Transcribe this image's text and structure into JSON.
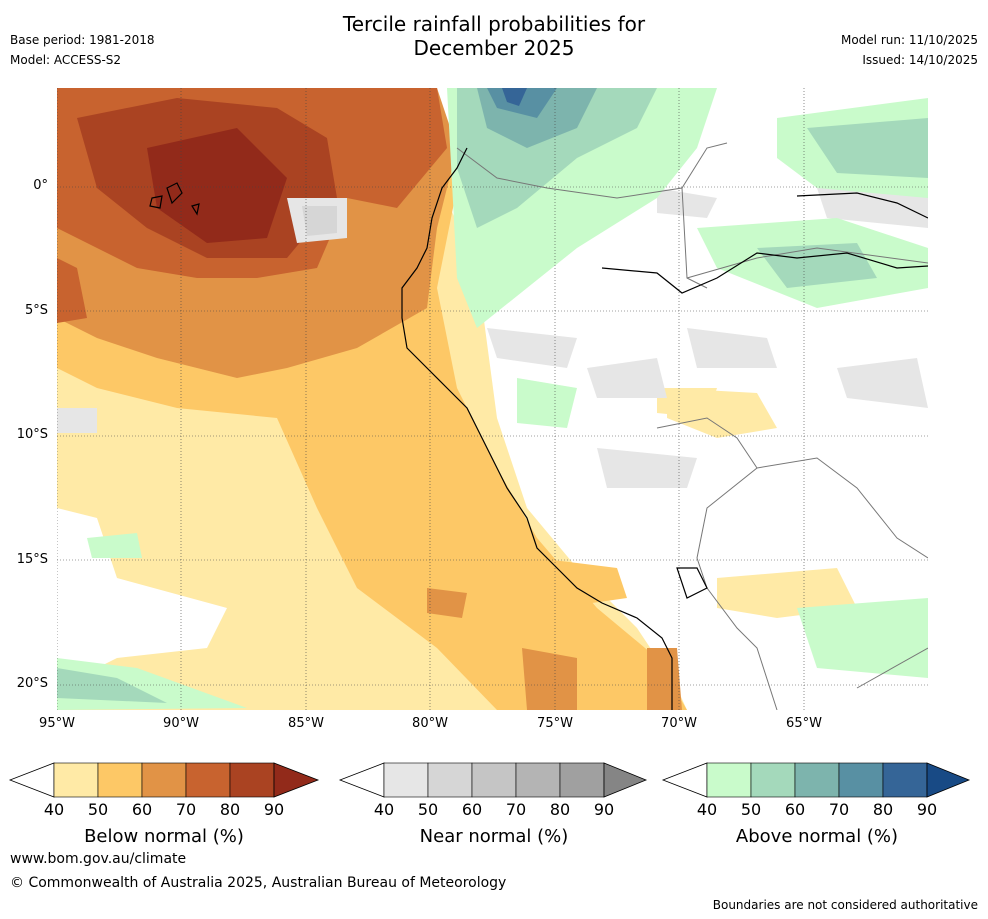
{
  "header": {
    "title_line1": "Tercile rainfall probabilities for",
    "title_line2": "December 2025",
    "base_period": "Base period: 1981-2018",
    "model": "Model: ACCESS-S2",
    "model_run": "Model run: 11/10/2025",
    "issued": "Issued: 14/10/2025"
  },
  "map": {
    "region": "Ecuador / Peru / western Amazon",
    "lat_labels": [
      "0°",
      "5°S",
      "10°S",
      "15°S",
      "20°S"
    ],
    "lon_labels": [
      "95°W",
      "90°W",
      "85°W",
      "80°W",
      "75°W",
      "70°W",
      "65°W"
    ],
    "lat_values": [
      0,
      -5,
      -10,
      -15,
      -20
    ],
    "lon_values": [
      -95,
      -90,
      -85,
      -80,
      -75,
      -70,
      -65
    ],
    "lat_range": [
      -21,
      4
    ],
    "lon_range": [
      -95,
      -60
    ]
  },
  "colorbars": [
    {
      "label": "Below normal (%)",
      "ticks": [
        "40",
        "50",
        "60",
        "70",
        "80",
        "90"
      ],
      "colors": [
        "#ffeaa6",
        "#fdc866",
        "#e19346",
        "#c8632f",
        "#aa4322",
        "#922a1a"
      ]
    },
    {
      "label": "Near normal (%)",
      "ticks": [
        "40",
        "50",
        "60",
        "70",
        "80",
        "90"
      ],
      "colors": [
        "#e6e6e6",
        "#d6d6d6",
        "#c5c5c5",
        "#b4b4b4",
        "#a0a0a0",
        "#858585"
      ]
    },
    {
      "label": "Above normal (%)",
      "ticks": [
        "40",
        "50",
        "60",
        "70",
        "80",
        "90"
      ],
      "colors": [
        "#c9fbcb",
        "#a4d9bb",
        "#7db4ad",
        "#5890a3",
        "#356597",
        "#184a85"
      ]
    }
  ],
  "footer": {
    "url": "www.bom.gov.au/climate",
    "copyright": "© Commonwealth of Australia 2025, Australian Bureau of Meteorology",
    "disclaimer": "Boundaries are not considered authoritative"
  }
}
